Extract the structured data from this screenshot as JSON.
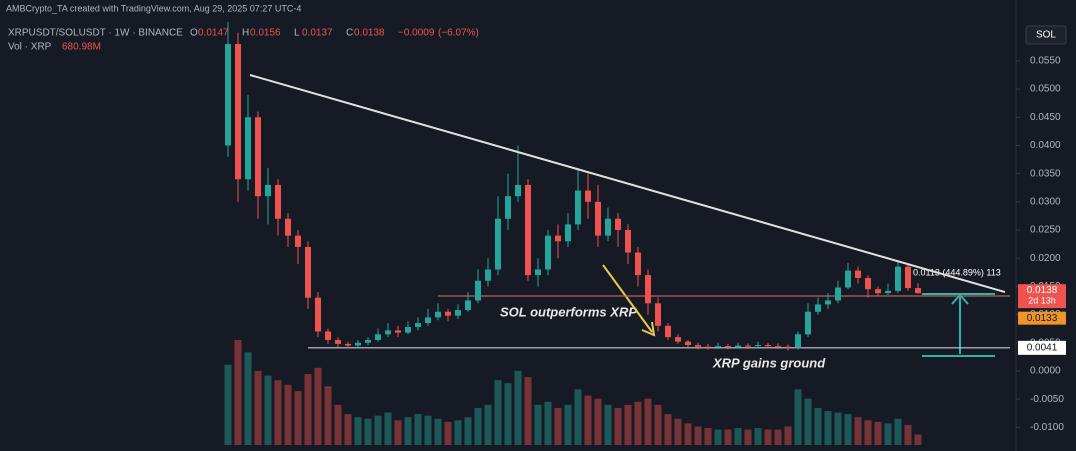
{
  "header": "AMBCrypto_TA created with TradingView.com, Aug 29, 2025 07:27 UTC-4",
  "chart_data": {
    "type": "candlestick",
    "symbol": "XRPUSDT/SOLUSDT · 1W · BINANCE",
    "ohlc_legend": [
      {
        "label": "O",
        "value": 0.0147
      },
      {
        "label": "H",
        "value": 0.0156
      },
      {
        "label": "L",
        "value": 0.0137
      },
      {
        "label": "C",
        "value": 0.0138
      }
    ],
    "change": {
      "value": -0.0009,
      "label": "−0.0009"
    },
    "change_percent": {
      "value": -6.07,
      "label": "(−6.07%)"
    },
    "volume_title": "Vol · XRP",
    "volume_legend": {
      "value": 680.98,
      "label": "680.98M"
    },
    "quote_currency": "SOL",
    "up_color": "#26a69a",
    "down_color": "#ef5350",
    "open": [
      0.04,
      0.058,
      0.034,
      0.045,
      0.031,
      0.033,
      0.027,
      0.024,
      0.022,
      0.013,
      0.007,
      0.0055,
      0.0048,
      0.0045,
      0.005,
      0.0055,
      0.0065,
      0.0072,
      0.0068,
      0.0078,
      0.0085,
      0.0095,
      0.0105,
      0.0098,
      0.0108,
      0.0125,
      0.016,
      0.018,
      0.027,
      0.031,
      0.033,
      0.017,
      0.018,
      0.024,
      0.023,
      0.026,
      0.032,
      0.03,
      0.024,
      0.027,
      0.025,
      0.021,
      0.017,
      0.012,
      0.008,
      0.006,
      0.0052,
      0.0046,
      0.0043,
      0.0042,
      0.0044,
      0.0042,
      0.0045,
      0.0044,
      0.0046,
      0.0044,
      0.0043,
      0.0041,
      0.0065,
      0.0105,
      0.0118,
      0.0125,
      0.0148,
      0.0178,
      0.0165,
      0.0145,
      0.0138,
      0.0142,
      0.0185,
      0.0147
    ],
    "high": [
      0.0619,
      0.06,
      0.049,
      0.046,
      0.036,
      0.034,
      0.028,
      0.025,
      0.023,
      0.014,
      0.0075,
      0.006,
      0.0052,
      0.0055,
      0.006,
      0.0075,
      0.0085,
      0.008,
      0.0088,
      0.0095,
      0.011,
      0.012,
      0.011,
      0.0118,
      0.014,
      0.018,
      0.02,
      0.031,
      0.035,
      0.04,
      0.034,
      0.02,
      0.025,
      0.026,
      0.028,
      0.036,
      0.035,
      0.033,
      0.029,
      0.028,
      0.026,
      0.022,
      0.018,
      0.013,
      0.0085,
      0.0065,
      0.0055,
      0.005,
      0.0048,
      0.005,
      0.0048,
      0.005,
      0.0049,
      0.0052,
      0.005,
      0.0049,
      0.0047,
      0.007,
      0.012,
      0.013,
      0.0138,
      0.016,
      0.0192,
      0.0185,
      0.017,
      0.015,
      0.0155,
      0.0195,
      0.0188,
      0.0156
    ],
    "low": [
      0.038,
      0.03,
      0.032,
      0.027,
      0.026,
      0.024,
      0.022,
      0.019,
      0.011,
      0.006,
      0.0048,
      0.0042,
      0.004,
      0.0042,
      0.0046,
      0.0052,
      0.006,
      0.006,
      0.0065,
      0.0072,
      0.008,
      0.009,
      0.0088,
      0.0092,
      0.0105,
      0.012,
      0.015,
      0.017,
      0.025,
      0.03,
      0.016,
      0.015,
      0.017,
      0.02,
      0.022,
      0.025,
      0.027,
      0.022,
      0.023,
      0.022,
      0.019,
      0.015,
      0.01,
      0.007,
      0.0055,
      0.0048,
      0.0042,
      0.0038,
      0.0038,
      0.0039,
      0.0038,
      0.004,
      0.0039,
      0.0041,
      0.004,
      0.0039,
      0.0036,
      0.0038,
      0.006,
      0.01,
      0.011,
      0.012,
      0.0145,
      0.0155,
      0.013,
      0.0132,
      0.0135,
      0.0138,
      0.0142,
      0.0137
    ],
    "close": [
      0.058,
      0.034,
      0.045,
      0.031,
      0.033,
      0.027,
      0.024,
      0.022,
      0.013,
      0.007,
      0.0055,
      0.0048,
      0.0045,
      0.005,
      0.0055,
      0.0065,
      0.0072,
      0.0068,
      0.0078,
      0.0085,
      0.0095,
      0.0105,
      0.0098,
      0.0108,
      0.0125,
      0.016,
      0.018,
      0.027,
      0.031,
      0.033,
      0.017,
      0.018,
      0.024,
      0.023,
      0.026,
      0.032,
      0.03,
      0.024,
      0.027,
      0.025,
      0.021,
      0.017,
      0.012,
      0.008,
      0.006,
      0.0052,
      0.0046,
      0.0043,
      0.0042,
      0.0044,
      0.0042,
      0.0045,
      0.0044,
      0.0046,
      0.0044,
      0.0043,
      0.0041,
      0.0065,
      0.0105,
      0.0118,
      0.0125,
      0.0148,
      0.0178,
      0.0165,
      0.0145,
      0.0138,
      0.0142,
      0.0185,
      0.0147,
      0.0138
    ],
    "volume": [
      5200,
      6800,
      6000,
      4800,
      4500,
      4200,
      3900,
      3500,
      4600,
      5000,
      3800,
      2600,
      2000,
      1800,
      1700,
      1900,
      2100,
      1600,
      1800,
      2000,
      1900,
      1700,
      1500,
      1600,
      1800,
      2400,
      2600,
      4200,
      4000,
      4800,
      4400,
      2600,
      2800,
      2400,
      2600,
      3600,
      3200,
      3000,
      2600,
      2400,
      2600,
      2800,
      3000,
      2600,
      2000,
      1700,
      1400,
      1200,
      1100,
      1000,
      1000,
      1100,
      1000,
      1100,
      1000,
      1000,
      1200,
      3600,
      3000,
      2400,
      2200,
      2100,
      2000,
      1800,
      1600,
      1500,
      1400,
      1700,
      1300,
      680.98
    ],
    "ylim": [
      -0.0142,
      0.0619
    ],
    "yticks": [
      {
        "value": 0.055,
        "label": "0.0550"
      },
      {
        "value": 0.05,
        "label": "0.0500"
      },
      {
        "value": 0.045,
        "label": "0.0450"
      },
      {
        "value": 0.04,
        "label": "0.0400"
      },
      {
        "value": 0.035,
        "label": "0.0350"
      },
      {
        "value": 0.03,
        "label": "0.0300"
      },
      {
        "value": 0.025,
        "label": "0.0250"
      },
      {
        "value": 0.02,
        "label": "0.0200"
      },
      {
        "value": 0.015,
        "label": "0.0150"
      },
      {
        "value": 0.01,
        "label": "0.0100"
      },
      {
        "value": 0.005,
        "label": "0.0050"
      },
      {
        "value": 0,
        "label": "0.0000"
      },
      {
        "value": -0.005,
        "label": "-0.0050"
      },
      {
        "value": -0.01,
        "label": "-0.0100"
      }
    ],
    "trend_line": {
      "x": [
        2.2,
        77.7
      ],
      "y": [
        0.0525,
        0.014
      ],
      "color": "#e0e0e0"
    },
    "horizontal_lines": [
      {
        "value": 0.0133,
        "start": 21,
        "color": "#b8655c"
      },
      {
        "value": 0.0041,
        "start": 8,
        "color": "#c8cad0"
      }
    ],
    "price_tags": {
      "last": 0.0138,
      "countdown": "2d 13h",
      "prev": 0.0133,
      "level": 0.0041
    },
    "annotations": {
      "sol": "SOL outperforms XRP",
      "xrp": "XRP gains ground",
      "measure": "0.0113 (444.89%) 113"
    }
  }
}
